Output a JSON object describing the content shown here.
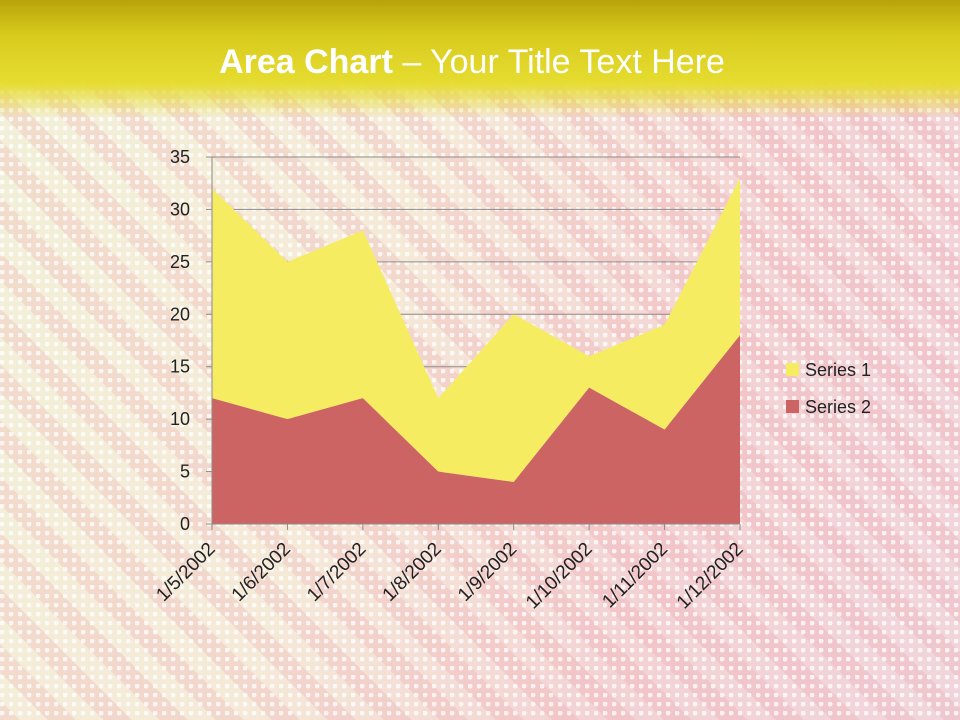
{
  "slide": {
    "title_bold": "Area Chart",
    "title_sep": " – ",
    "title_rest": "Your Title Text Here"
  },
  "colors": {
    "series1": "#f6ec62",
    "series2": "#cc6464",
    "grid": "#8c8c8c",
    "header": "#d6c81e"
  },
  "chart_data": {
    "type": "area",
    "stacked": true,
    "categories": [
      "1/5/2002",
      "1/6/2002",
      "1/7/2002",
      "1/8/2002",
      "1/9/2002",
      "1/10/2002",
      "1/11/2002",
      "1/12/2002"
    ],
    "series": [
      {
        "name": "Series 1",
        "values": [
          20,
          15,
          16,
          7,
          16,
          3,
          10,
          15
        ]
      },
      {
        "name": "Series 2",
        "values": [
          12,
          10,
          12,
          5,
          4,
          13,
          9,
          18
        ]
      }
    ],
    "ylim": [
      0,
      35
    ],
    "yticks": [
      0,
      5,
      10,
      15,
      20,
      25,
      30,
      35
    ],
    "grid": true,
    "legend": "right"
  }
}
